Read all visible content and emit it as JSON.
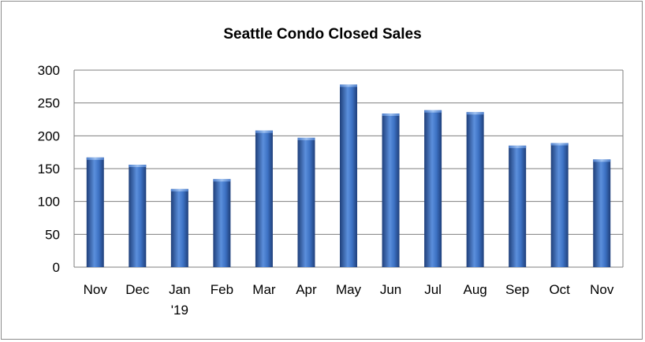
{
  "chart_data": {
    "type": "bar",
    "title": "Seattle Condo Closed Sales",
    "xlabel": "",
    "ylabel": "",
    "categories": [
      "Nov",
      "Dec",
      "Jan\n'19",
      "Feb",
      "Mar",
      "Apr",
      "May",
      "Jun",
      "Jul",
      "Aug",
      "Sep",
      "Oct",
      "Nov"
    ],
    "values": [
      167,
      156,
      119,
      134,
      208,
      197,
      278,
      234,
      239,
      236,
      185,
      189,
      164
    ],
    "ylim": [
      0,
      300
    ],
    "yticks": [
      0,
      50,
      100,
      150,
      200,
      250,
      300
    ],
    "grid": true,
    "legend": "none",
    "colors": {
      "bar": "#3d72c4",
      "bar_dark": "#1f3f7a",
      "bar_light": "#6c9be0",
      "grid": "#7f7f7f"
    }
  }
}
